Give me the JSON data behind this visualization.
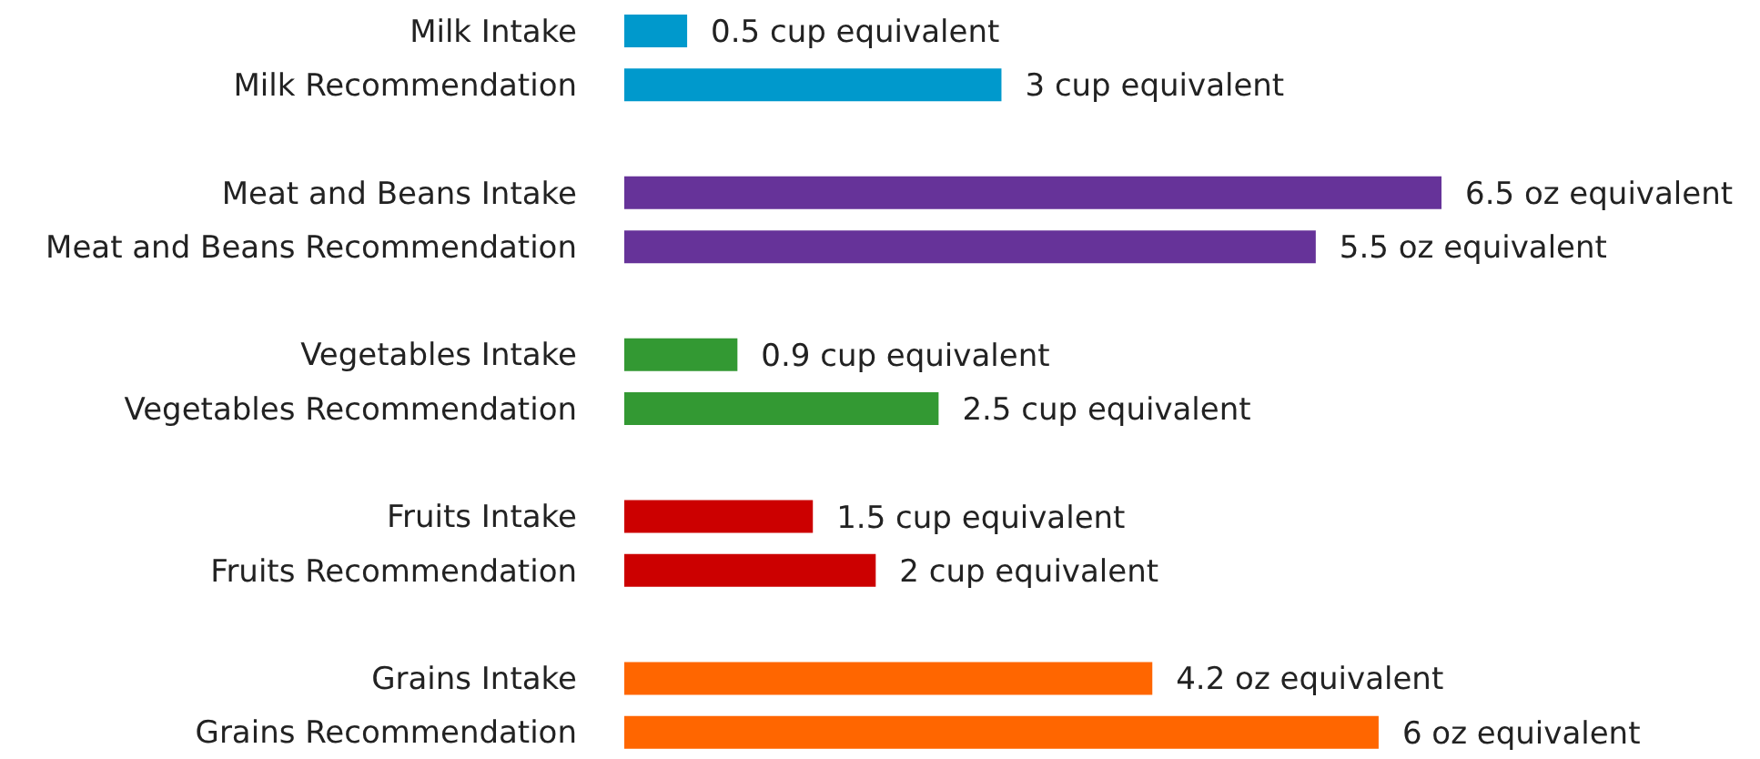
{
  "chart_data": {
    "type": "bar",
    "orientation": "horizontal",
    "categories": [
      "Milk Intake",
      "Milk Recommendation",
      null,
      "Meat and Beans Intake",
      "Meat and Beans Recommendation",
      null,
      "Vegetables Intake",
      "Vegetables Recommendation",
      null,
      "Fruits Intake",
      "Fruits Recommendation",
      null,
      "Grains Intake",
      "Grains Recommendation"
    ],
    "values": [
      0.5,
      3,
      null,
      6.5,
      5.5,
      null,
      0.9,
      2.5,
      null,
      1.5,
      2,
      null,
      4.2,
      6
    ],
    "value_labels": [
      "0.5 cup equivalent",
      "3 cup equivalent",
      null,
      "6.5 oz equivalent",
      "5.5 oz equivalent",
      null,
      "0.9 cup equivalent",
      "2.5 cup equivalent",
      null,
      "1.5 cup equivalent",
      "2 cup equivalent",
      null,
      "4.2 oz equivalent",
      "6 oz equivalent"
    ],
    "colors": [
      "#0099cc",
      "#0099cc",
      null,
      "#663399",
      "#663399",
      null,
      "#339933",
      "#339933",
      null,
      "#cc0000",
      "#cc0000",
      null,
      "#ff6600",
      "#ff6600"
    ],
    "grid": false,
    "legend": false
  }
}
